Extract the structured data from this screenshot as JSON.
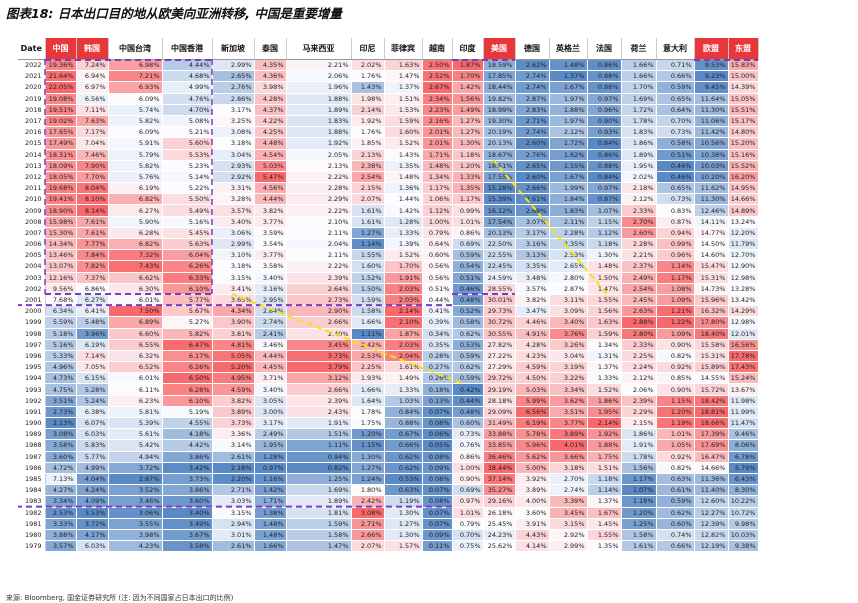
{
  "title": "图表18: 日本出口目的地从欧美向亚洲转移, 中国是重要增量",
  "source": "来源: Bloomberg, 国金证券研究所 (注: 因为不同国家占日本出口的比例)",
  "colors": {
    "red_max": "#f8696b",
    "blue_max": "#5a8ac6",
    "mid": "#fcfcff",
    "header_red": "#e8373b",
    "header_blue": "#4f7fc0",
    "dash_purple": "#7a3cc4",
    "dash_yellow": "#f2e700"
  },
  "chart_data": {
    "type": "heatmap",
    "title": "图表18: 日本出口目的地从欧美向亚洲转移, 中国是重要增量",
    "year_header": "Date",
    "columns": [
      {
        "name": "中国",
        "group": "red"
      },
      {
        "name": "韩国",
        "group": "red"
      },
      {
        "name": "中国台湾",
        "group": "plain"
      },
      {
        "name": "中国香港",
        "group": "plain"
      },
      {
        "name": "新加坡",
        "group": "plain"
      },
      {
        "name": "泰国",
        "group": "plain"
      },
      {
        "name": "马来西亚",
        "group": "plain"
      },
      {
        "name": "印尼",
        "group": "plain"
      },
      {
        "name": "菲律宾",
        "group": "plain"
      },
      {
        "name": "越南",
        "group": "plain"
      },
      {
        "name": "印度",
        "group": "plain"
      },
      {
        "name": "美国",
        "group": "red"
      },
      {
        "name": "德国",
        "group": "plain"
      },
      {
        "name": "英格兰",
        "group": "plain"
      },
      {
        "name": "法国",
        "group": "plain"
      },
      {
        "name": "荷兰",
        "group": "plain"
      },
      {
        "name": "意大利",
        "group": "plain"
      },
      {
        "name": "欧盟",
        "group": "red"
      },
      {
        "name": "东盟",
        "group": "red"
      }
    ],
    "years": [
      2022,
      2021,
      2020,
      2019,
      2018,
      2017,
      2016,
      2015,
      2014,
      2013,
      2012,
      2011,
      2010,
      2009,
      2008,
      2007,
      2006,
      2005,
      2004,
      2003,
      2002,
      2001,
      2000,
      1999,
      1998,
      1997,
      1996,
      1995,
      1994,
      1993,
      1992,
      1991,
      1990,
      1989,
      1988,
      1987,
      1986,
      1985,
      1984,
      1983,
      1982,
      1981,
      1980,
      1979
    ],
    "values": [
      [
        19.36,
        7.24,
        6.98,
        4.44,
        2.99,
        4.35,
        2.21,
        2.02,
        1.63,
        2.5,
        1.87,
        18.59,
        2.62,
        1.48,
        0.86,
        1.66,
        0.71,
        9.53,
        15.83
      ],
      [
        21.64,
        6.94,
        7.21,
        4.68,
        2.65,
        4.36,
        2.06,
        1.76,
        1.47,
        2.52,
        1.7,
        17.85,
        2.74,
        1.37,
        0.88,
        1.66,
        0.66,
        9.23,
        15.0
      ],
      [
        22.05,
        6.97,
        6.93,
        4.99,
        2.76,
        3.98,
        1.96,
        1.43,
        1.37,
        2.67,
        1.42,
        18.44,
        2.74,
        1.67,
        0.88,
        1.7,
        0.59,
        9.45,
        14.39
      ],
      [
        19.08,
        6.56,
        6.09,
        4.76,
        2.86,
        4.28,
        1.88,
        1.98,
        1.51,
        2.34,
        1.56,
        19.82,
        2.87,
        1.97,
        0.97,
        1.69,
        0.65,
        11.64,
        15.05
      ],
      [
        19.51,
        7.11,
        5.74,
        4.7,
        3.17,
        4.37,
        1.89,
        2.14,
        1.53,
        2.23,
        1.49,
        18.99,
        2.83,
        1.88,
        0.96,
        1.72,
        0.64,
        11.3,
        15.51
      ],
      [
        19.02,
        7.63,
        5.82,
        5.08,
        3.25,
        4.22,
        1.83,
        1.92,
        1.59,
        2.16,
        1.27,
        19.3,
        2.71,
        1.97,
        0.9,
        1.78,
        0.7,
        11.06,
        15.17
      ],
      [
        17.65,
        7.17,
        6.09,
        5.21,
        3.08,
        4.25,
        1.88,
        1.76,
        1.6,
        2.01,
        1.27,
        20.19,
        2.74,
        2.12,
        0.93,
        1.83,
        0.73,
        11.42,
        14.8
      ],
      [
        17.49,
        7.04,
        5.91,
        5.6,
        3.18,
        4.48,
        1.92,
        1.85,
        1.52,
        2.01,
        1.3,
        20.13,
        2.6,
        1.72,
        0.84,
        1.86,
        0.58,
        10.56,
        15.2
      ],
      [
        18.31,
        7.46,
        5.79,
        5.53,
        3.04,
        4.54,
        2.05,
        2.13,
        1.43,
        1.71,
        1.18,
        18.67,
        2.76,
        1.62,
        0.86,
        1.89,
        0.51,
        10.38,
        15.16
      ],
      [
        18.09,
        7.9,
        5.82,
        5.23,
        2.93,
        5.03,
        2.13,
        2.38,
        1.35,
        1.48,
        1.2,
        18.51,
        2.65,
        1.55,
        0.88,
        1.95,
        0.46,
        10.03,
        15.52
      ],
      [
        18.05,
        7.7,
        5.76,
        5.14,
        2.92,
        5.47,
        2.22,
        2.54,
        1.48,
        1.34,
        1.33,
        17.55,
        2.6,
        1.67,
        0.84,
        2.02,
        0.46,
        10.2,
        16.2
      ],
      [
        19.68,
        8.04,
        6.19,
        5.22,
        3.31,
        4.56,
        2.28,
        2.15,
        1.36,
        1.17,
        1.35,
        15.28,
        2.66,
        1.99,
        0.97,
        2.18,
        0.65,
        11.62,
        14.95
      ],
      [
        19.41,
        8.1,
        6.82,
        5.5,
        3.28,
        4.44,
        2.29,
        2.07,
        1.44,
        1.06,
        1.17,
        15.39,
        2.61,
        1.84,
        0.87,
        2.12,
        0.73,
        11.3,
        14.66
      ],
      [
        18.9,
        8.14,
        6.27,
        5.49,
        3.57,
        3.82,
        2.22,
        1.61,
        1.42,
        1.12,
        0.99,
        16.12,
        2.69,
        1.83,
        1.07,
        2.33,
        0.83,
        12.46,
        14.89
      ],
      [
        15.98,
        7.61,
        5.9,
        5.16,
        3.4,
        3.77,
        2.1,
        1.61,
        1.28,
        1.0,
        1.01,
        17.54,
        3.07,
        2.11,
        1.15,
        2.7,
        0.87,
        14.11,
        13.24
      ],
      [
        15.3,
        7.61,
        6.28,
        5.45,
        3.06,
        3.59,
        2.11,
        1.27,
        1.33,
        0.79,
        0.86,
        20.13,
        3.17,
        2.28,
        1.12,
        2.6,
        0.94,
        14.77,
        12.2
      ],
      [
        14.34,
        7.77,
        6.82,
        5.63,
        2.99,
        3.54,
        2.04,
        1.14,
        1.39,
        0.64,
        0.69,
        22.5,
        3.16,
        2.35,
        1.18,
        2.28,
        0.99,
        14.5,
        11.79
      ],
      [
        13.46,
        7.84,
        7.32,
        6.04,
        3.1,
        3.77,
        2.11,
        1.55,
        1.52,
        0.6,
        0.59,
        22.55,
        3.13,
        2.53,
        1.3,
        2.21,
        0.96,
        14.6,
        12.7
      ],
      [
        13.07,
        7.82,
        7.43,
        6.26,
        3.18,
        3.58,
        2.22,
        1.6,
        1.7,
        0.56,
        0.54,
        22.45,
        3.35,
        2.65,
        1.48,
        2.37,
        1.14,
        15.47,
        12.9
      ],
      [
        12.16,
        7.37,
        6.62,
        6.33,
        3.15,
        3.4,
        2.39,
        1.52,
        1.91,
        0.56,
        0.51,
        24.59,
        3.48,
        2.8,
        1.5,
        2.49,
        1.17,
        15.31,
        12.98
      ],
      [
        9.56,
        6.86,
        6.3,
        6.1,
        3.41,
        3.16,
        2.64,
        1.5,
        2.03,
        0.51,
        0.46,
        28.55,
        3.57,
        2.87,
        1.47,
        2.54,
        1.08,
        14.73,
        13.28
      ],
      [
        7.68,
        6.27,
        6.01,
        5.77,
        3.65,
        2.95,
        2.73,
        1.59,
        2.03,
        0.44,
        0.48,
        30.01,
        3.82,
        3.11,
        1.55,
        2.45,
        1.09,
        15.96,
        13.42
      ],
      [
        6.34,
        6.41,
        7.5,
        5.67,
        4.34,
        2.84,
        2.9,
        1.58,
        2.14,
        0.41,
        0.52,
        29.73,
        3.47,
        3.09,
        1.56,
        2.63,
        1.21,
        16.32,
        14.29
      ],
      [
        5.59,
        5.48,
        6.89,
        5.27,
        3.9,
        2.74,
        2.66,
        1.66,
        2.1,
        0.39,
        0.58,
        30.72,
        4.46,
        3.4,
        1.63,
        2.88,
        1.22,
        17.8,
        12.98
      ],
      [
        5.18,
        3.96,
        6.6,
        5.82,
        3.81,
        2.41,
        2.4,
        1.11,
        1.87,
        0.34,
        0.62,
        30.55,
        4.91,
        3.76,
        1.59,
        2.8,
        1.09,
        18.4,
        12.01
      ],
      [
        5.16,
        6.19,
        6.55,
        6.47,
        4.81,
        3.46,
        3.45,
        2.42,
        2.03,
        0.35,
        0.53,
        27.82,
        4.28,
        3.26,
        1.34,
        2.33,
        0.9,
        15.58,
        16.56
      ],
      [
        5.33,
        7.14,
        6.32,
        6.17,
        5.05,
        4.44,
        3.73,
        2.53,
        2.04,
        0.28,
        0.59,
        27.22,
        4.23,
        3.04,
        1.31,
        2.25,
        0.82,
        15.31,
        17.78
      ],
      [
        4.96,
        7.05,
        6.52,
        6.26,
        5.2,
        4.45,
        3.79,
        2.25,
        1.61,
        0.27,
        0.62,
        27.29,
        4.59,
        3.19,
        1.37,
        2.24,
        0.92,
        15.89,
        17.43
      ],
      [
        4.73,
        6.15,
        6.01,
        6.5,
        4.95,
        3.71,
        3.12,
        1.93,
        1.49,
        0.26,
        0.59,
        29.72,
        4.5,
        3.22,
        1.33,
        2.12,
        0.85,
        14.55,
        15.24
      ],
      [
        4.75,
        5.28,
        6.11,
        6.28,
        4.59,
        3.4,
        2.66,
        1.66,
        1.33,
        0.18,
        0.42,
        29.19,
        5.03,
        3.34,
        1.52,
        2.06,
        0.9,
        15.72,
        13.67
      ],
      [
        3.51,
        5.24,
        6.23,
        6.1,
        3.82,
        3.05,
        2.39,
        1.64,
        1.03,
        0.13,
        0.44,
        28.18,
        5.99,
        3.62,
        1.86,
        2.39,
        1.15,
        18.42,
        11.98
      ],
      [
        2.73,
        6.38,
        5.81,
        5.19,
        3.89,
        3.0,
        2.43,
        1.78,
        0.84,
        0.07,
        0.48,
        29.09,
        6.56,
        3.51,
        1.95,
        2.29,
        1.2,
        18.81,
        11.99
      ],
      [
        2.13,
        6.07,
        5.39,
        4.55,
        3.73,
        3.17,
        1.91,
        1.75,
        0.88,
        0.08,
        0.6,
        31.49,
        6.19,
        3.77,
        2.14,
        2.15,
        1.19,
        18.66,
        11.47
      ],
      [
        3.08,
        6.03,
        5.61,
        4.18,
        3.36,
        2.49,
        1.51,
        1.2,
        0.67,
        0.06,
        0.73,
        33.88,
        5.78,
        3.89,
        1.92,
        1.86,
        1.01,
        17.39,
        9.46
      ],
      [
        3.58,
        5.83,
        5.42,
        4.42,
        3.14,
        1.95,
        1.11,
        1.15,
        0.66,
        0.05,
        0.76,
        33.85,
        5.96,
        4.01,
        1.88,
        1.91,
        1.05,
        17.69,
        8.06
      ],
      [
        3.6,
        5.77,
        4.94,
        3.86,
        2.61,
        1.28,
        0.94,
        1.3,
        0.62,
        0.08,
        0.86,
        36.46,
        5.62,
        3.66,
        1.75,
        1.78,
        0.92,
        16.47,
        6.78
      ],
      [
        4.72,
        4.99,
        3.72,
        3.42,
        2.18,
        0.97,
        0.82,
        1.27,
        0.62,
        0.09,
        1.0,
        38.44,
        5.0,
        3.18,
        1.51,
        1.56,
        0.82,
        14.66,
        5.79
      ],
      [
        7.13,
        4.04,
        2.87,
        3.73,
        2.2,
        1.16,
        1.25,
        1.24,
        0.53,
        0.08,
        0.9,
        37.14,
        3.92,
        2.7,
        1.18,
        1.17,
        0.63,
        11.36,
        6.43
      ],
      [
        4.27,
        4.24,
        3.52,
        3.86,
        2.71,
        1.42,
        1.69,
        1.8,
        0.63,
        0.07,
        0.69,
        35.27,
        3.89,
        2.74,
        1.14,
        1.07,
        0.61,
        11.4,
        8.3
      ],
      [
        3.34,
        4.09,
        3.46,
        3.6,
        3.03,
        1.71,
        1.89,
        2.42,
        1.19,
        0.08,
        0.97,
        29.16,
        4.0,
        3.39,
        1.37,
        1.18,
        0.59,
        12.6,
        10.22
      ],
      [
        2.53,
        3.53,
        3.06,
        3.4,
        3.15,
        1.38,
        1.81,
        3.08,
        1.3,
        0.07,
        1.01,
        26.18,
        3.6,
        3.45,
        1.67,
        1.2,
        0.62,
        12.27,
        10.72
      ],
      [
        3.33,
        3.72,
        3.55,
        3.49,
        2.94,
        1.48,
        1.59,
        2.71,
        1.27,
        0.07,
        0.79,
        25.45,
        3.91,
        3.15,
        1.45,
        1.25,
        0.6,
        12.39,
        9.98
      ],
      [
        3.88,
        4.17,
        3.98,
        3.67,
        3.01,
        1.48,
        1.58,
        2.66,
        1.3,
        0.09,
        0.7,
        24.23,
        4.43,
        2.92,
        1.55,
        1.58,
        0.74,
        12.82,
        10.03
      ],
      [
        3.57,
        6.03,
        4.23,
        3.58,
        2.61,
        1.66,
        1.47,
        2.07,
        1.57,
        0.11,
        0.75,
        25.62,
        4.14,
        2.99,
        1.35,
        1.61,
        0.66,
        12.19,
        9.38
      ]
    ],
    "unit": "%",
    "color_scale": "per-column red(high) to blue(low)"
  }
}
